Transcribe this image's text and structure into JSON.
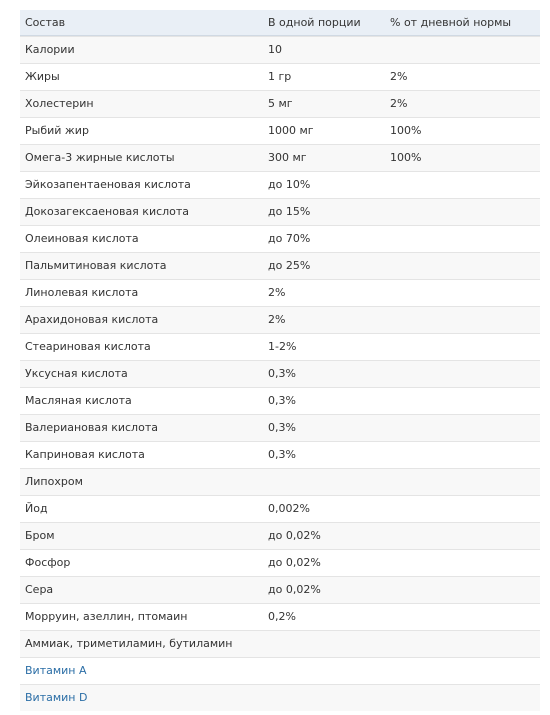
{
  "table": {
    "header": [
      "Состав",
      "В одной порции",
      "% от дневной нормы"
    ],
    "rows": [
      {
        "name": "Калории",
        "amount": "10"
      },
      {
        "name": "Жиры",
        "amount": "1 гр",
        "daily": "2%"
      },
      {
        "name": "Холестерин",
        "amount": "5 мг",
        "daily": "2%"
      },
      {
        "name": "Рыбий жир",
        "amount": "1000 мг",
        "daily": "100%"
      },
      {
        "name": "Омега-3 жирные кислоты",
        "amount": "300 мг",
        "daily": "100%"
      },
      {
        "name": "Эйкозапентаеновая кислота",
        "amount": "до 10%"
      },
      {
        "name": "Докозагексаеновая кислота",
        "amount": "до 15%"
      },
      {
        "name": "Олеиновая кислота",
        "amount": "до 70%"
      },
      {
        "name": "Пальмитиновая кислота",
        "amount": "до 25%"
      },
      {
        "name": "Линолевая кислота",
        "amount": "2%"
      },
      {
        "name": "Арахидоновая кислота",
        "amount": "2%"
      },
      {
        "name": "Стеариновая кислота",
        "amount": "1-2%"
      },
      {
        "name": "Уксусная кислота",
        "amount": "0,3%"
      },
      {
        "name": "Масляная кислота",
        "amount": "0,3%"
      },
      {
        "name": "Валериановая кислота",
        "amount": "0,3%"
      },
      {
        "name": "Каприновая кислота",
        "amount": "0,3%"
      },
      {
        "name": "Липохром"
      },
      {
        "name": "Йод",
        "amount": "0,002%"
      },
      {
        "name": "Бром",
        "amount": "до 0,02%"
      },
      {
        "name": "Фосфор",
        "amount": "до 0,02%"
      },
      {
        "name": "Сера",
        "amount": "до 0,02%"
      },
      {
        "name": "Морруин, азеллин, птомаин",
        "amount": "0,2%"
      },
      {
        "name": "Аммиак, триметиламин, бутиламин"
      },
      {
        "name": "Витамин A",
        "link": true
      },
      {
        "name": "Витамин D",
        "link": true
      }
    ]
  }
}
